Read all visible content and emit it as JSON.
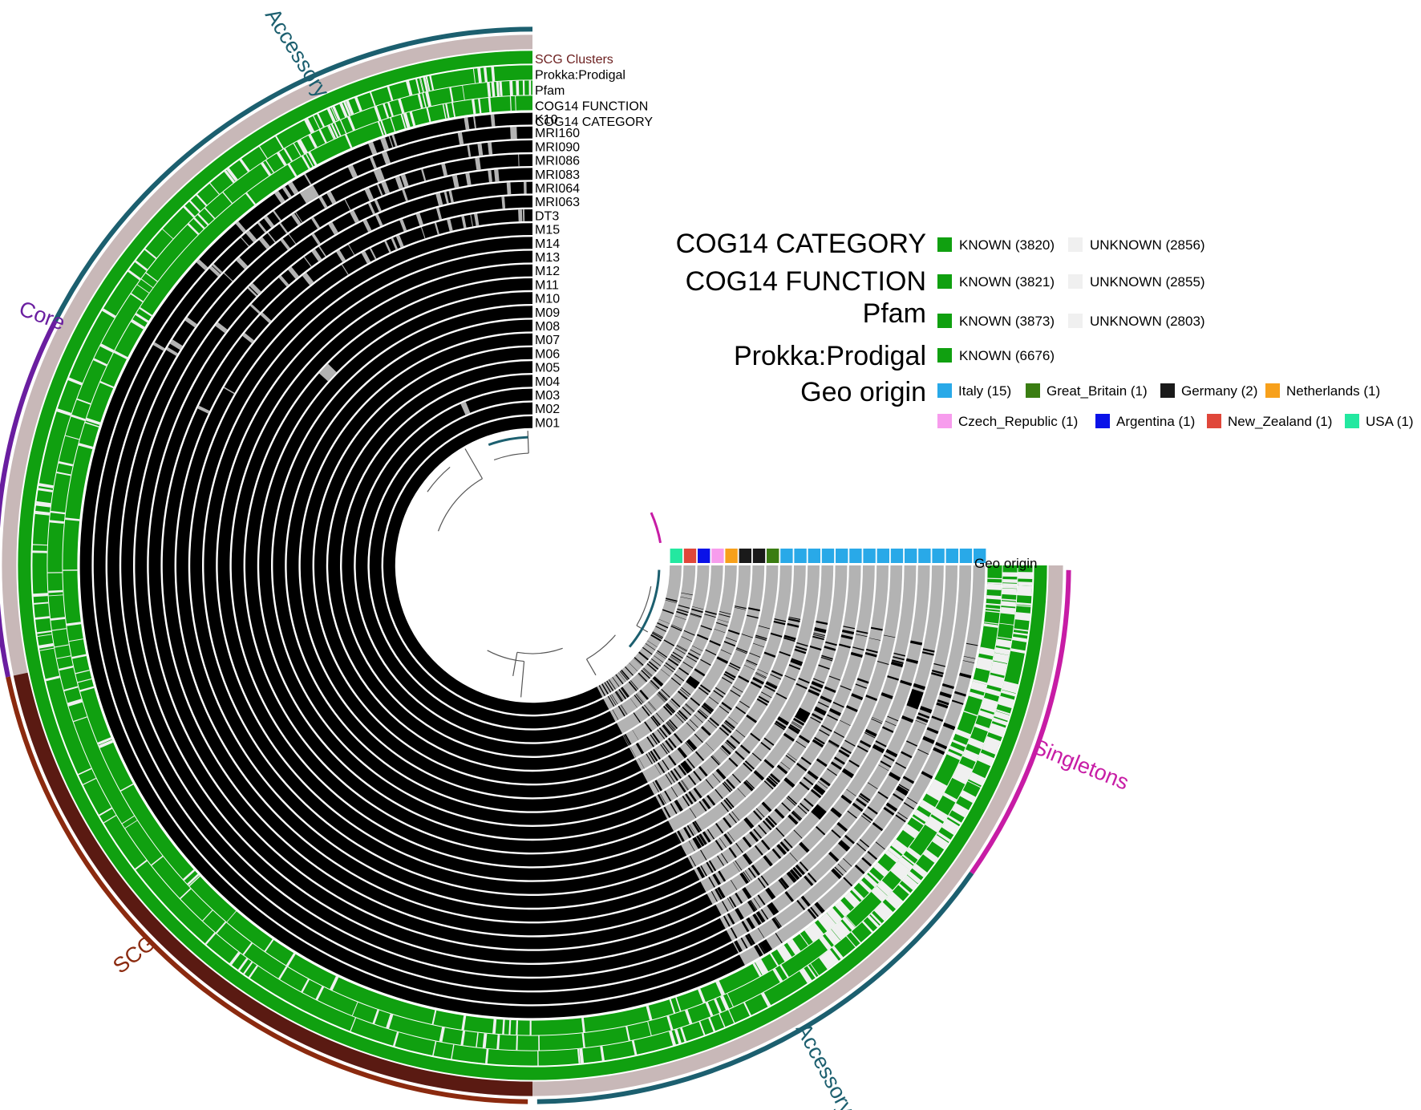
{
  "layer_labels": [
    "SCG Clusters",
    "Prokka:Prodigal",
    "Pfam",
    "COG14 FUNCTION",
    "COG14 CATEGORY"
  ],
  "genomes": [
    "K10",
    "MRI160",
    "MRI090",
    "MRI086",
    "MRI083",
    "MRI064",
    "MRI063",
    "DT3",
    "M15",
    "M14",
    "M13",
    "M12",
    "M11",
    "M10",
    "M09",
    "M08",
    "M07",
    "M06",
    "M05",
    "M04",
    "M03",
    "M02",
    "M01"
  ],
  "geo_origin_label": "Geo origin",
  "geo_colors": [
    "#29a9e8",
    "#29a9e8",
    "#29a9e8",
    "#29a9e8",
    "#29a9e8",
    "#29a9e8",
    "#29a9e8",
    "#29a9e8",
    "#29a9e8",
    "#29a9e8",
    "#29a9e8",
    "#29a9e8",
    "#29a9e8",
    "#29a9e8",
    "#29a9e8",
    "#3a7d12",
    "#1a1a1a",
    "#1a1a1a",
    "#f7a01b",
    "#f79ced",
    "#0a12e8",
    "#e0473a",
    "#23e8a0"
  ],
  "bin_labels": {
    "accessory_top": "Accessory",
    "core": "Core",
    "scg": "SCG",
    "accessory_bottom": "Accessory",
    "singletons": "Singletons"
  },
  "colors": {
    "scg_clusters_label": "#6b1e1e",
    "accessory": "#1c5f6f",
    "core": "#6a1ea0",
    "scg": "#8b2a0f",
    "singletons": "#c71ca5",
    "known": "#10a010",
    "unknown": "#f0f0f0",
    "presence": "#000000",
    "absence": "#b3b3b3",
    "scg_layer": "#5a1a12",
    "scg_layer_other": "#c8b8b8"
  },
  "legend": {
    "cog14_category": {
      "title": "COG14 CATEGORY",
      "items": [
        {
          "label": "KNOWN (3820)",
          "color": "#10a010"
        },
        {
          "label": "UNKNOWN (2856)",
          "color": "#f0f0f0"
        }
      ]
    },
    "cog14_function": {
      "title": "COG14 FUNCTION",
      "items": [
        {
          "label": "KNOWN (3821)",
          "color": "#10a010"
        },
        {
          "label": "UNKNOWN (2855)",
          "color": "#f0f0f0"
        }
      ]
    },
    "pfam": {
      "title": "Pfam",
      "items": [
        {
          "label": "KNOWN (3873)",
          "color": "#10a010"
        },
        {
          "label": "UNKNOWN (2803)",
          "color": "#f0f0f0"
        }
      ]
    },
    "prokka": {
      "title": "Prokka:Prodigal",
      "items": [
        {
          "label": "KNOWN (6676)",
          "color": "#10a010"
        }
      ]
    },
    "geo": {
      "title": "Geo origin",
      "items": [
        {
          "label": "Italy (15)",
          "color": "#29a9e8"
        },
        {
          "label": "Great_Britain (1)",
          "color": "#3a7d12"
        },
        {
          "label": "Germany (2)",
          "color": "#1a1a1a"
        },
        {
          "label": "Netherlands (1)",
          "color": "#f7a01b"
        },
        {
          "label": "Czech_Republic (1)",
          "color": "#f79ced"
        },
        {
          "label": "Argentina (1)",
          "color": "#0a12e8"
        },
        {
          "label": "New_Zealand (1)",
          "color": "#e0473a"
        },
        {
          "label": "USA (1)",
          "color": "#23e8a0"
        }
      ]
    }
  }
}
